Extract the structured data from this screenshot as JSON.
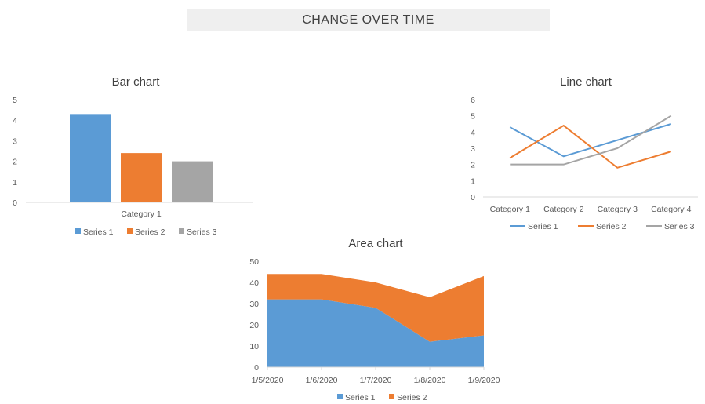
{
  "header": {
    "title": "CHANGE OVER TIME"
  },
  "colors": {
    "series1": "#5b9bd5",
    "series2": "#ed7d31",
    "series3": "#a5a5a5",
    "axis": "#d9d9d9"
  },
  "chart_data": [
    {
      "type": "bar",
      "title": "Bar chart",
      "categories": [
        "Category 1"
      ],
      "series": [
        {
          "name": "Series 1",
          "values": [
            4.3
          ]
        },
        {
          "name": "Series 2",
          "values": [
            2.4
          ]
        },
        {
          "name": "Series 3",
          "values": [
            2.0
          ]
        }
      ],
      "ylim": [
        0,
        5
      ],
      "yticks": [
        "0",
        "1",
        "2",
        "3",
        "4",
        "5"
      ],
      "grid": false,
      "legend": "bottom"
    },
    {
      "type": "line",
      "title": "Line chart",
      "categories": [
        "Category 1",
        "Category 2",
        "Category 3",
        "Category 4"
      ],
      "series": [
        {
          "name": "Series 1",
          "values": [
            4.3,
            2.5,
            3.5,
            4.5
          ]
        },
        {
          "name": "Series 2",
          "values": [
            2.4,
            4.4,
            1.8,
            2.8
          ]
        },
        {
          "name": "Series 3",
          "values": [
            2.0,
            2.0,
            3.0,
            5.0
          ]
        }
      ],
      "ylim": [
        0,
        6
      ],
      "yticks": [
        "0",
        "1",
        "2",
        "3",
        "4",
        "5",
        "6"
      ],
      "grid": false,
      "legend": "bottom"
    },
    {
      "type": "area",
      "stacked": true,
      "title": "Area chart",
      "x": [
        "1/5/2020",
        "1/6/2020",
        "1/7/2020",
        "1/8/2020",
        "1/9/2020"
      ],
      "series": [
        {
          "name": "Series 1",
          "values": [
            32,
            32,
            28,
            12,
            15
          ]
        },
        {
          "name": "Series 2",
          "values": [
            12,
            12,
            12,
            21,
            28
          ]
        }
      ],
      "ylim": [
        0,
        50
      ],
      "yticks": [
        "0",
        "10",
        "20",
        "30",
        "40",
        "50"
      ],
      "grid": false,
      "legend": "bottom"
    }
  ]
}
